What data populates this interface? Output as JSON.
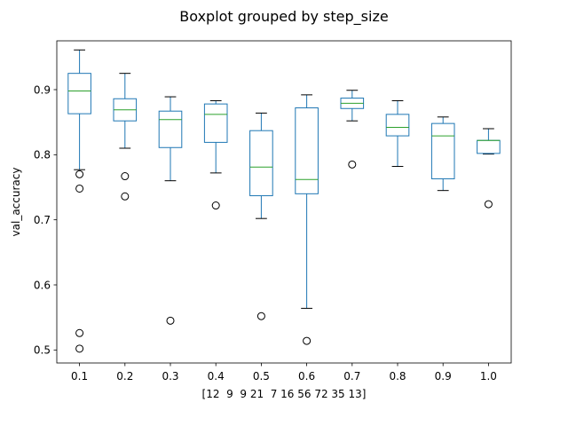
{
  "chart_data": {
    "type": "box",
    "title": "Boxplot grouped by step_size",
    "xlabel": "[12  9  9 21  7 16 56 72 35 13]",
    "ylabel": "val_accuracy",
    "categories": [
      "0.1",
      "0.2",
      "0.3",
      "0.4",
      "0.5",
      "0.6",
      "0.7",
      "0.8",
      "0.9",
      "1.0"
    ],
    "ylim": [
      0.48,
      0.975
    ],
    "yticks": [
      0.5,
      0.6,
      0.7,
      0.8,
      0.9
    ],
    "grid": false,
    "colors": {
      "box": "#1f77b4",
      "median": "#2ca02c",
      "whisker": "#000000",
      "flier": "#000000"
    },
    "boxes": [
      {
        "whislo": 0.777,
        "q1": 0.863,
        "med": 0.898,
        "q3": 0.925,
        "whishi": 0.961,
        "fliers": [
          0.77,
          0.748,
          0.526,
          0.502
        ]
      },
      {
        "whislo": 0.81,
        "q1": 0.852,
        "med": 0.869,
        "q3": 0.886,
        "whishi": 0.925,
        "fliers": [
          0.767,
          0.736
        ]
      },
      {
        "whislo": 0.76,
        "q1": 0.811,
        "med": 0.854,
        "q3": 0.867,
        "whishi": 0.889,
        "fliers": [
          0.545
        ]
      },
      {
        "whislo": 0.772,
        "q1": 0.819,
        "med": 0.862,
        "q3": 0.878,
        "whishi": 0.883,
        "fliers": [
          0.722
        ]
      },
      {
        "whislo": 0.702,
        "q1": 0.737,
        "med": 0.781,
        "q3": 0.837,
        "whishi": 0.864,
        "fliers": [
          0.552
        ]
      },
      {
        "whislo": 0.564,
        "q1": 0.74,
        "med": 0.762,
        "q3": 0.872,
        "whishi": 0.892,
        "fliers": [
          0.514
        ]
      },
      {
        "whislo": 0.852,
        "q1": 0.871,
        "med": 0.879,
        "q3": 0.887,
        "whishi": 0.899,
        "fliers": [
          0.785
        ]
      },
      {
        "whislo": 0.782,
        "q1": 0.829,
        "med": 0.842,
        "q3": 0.862,
        "whishi": 0.883,
        "fliers": []
      },
      {
        "whislo": 0.745,
        "q1": 0.763,
        "med": 0.829,
        "q3": 0.848,
        "whishi": 0.858,
        "fliers": []
      },
      {
        "whislo": 0.801,
        "q1": 0.802,
        "med": 0.822,
        "q3": 0.822,
        "whishi": 0.84,
        "fliers": [
          0.724
        ]
      }
    ]
  }
}
